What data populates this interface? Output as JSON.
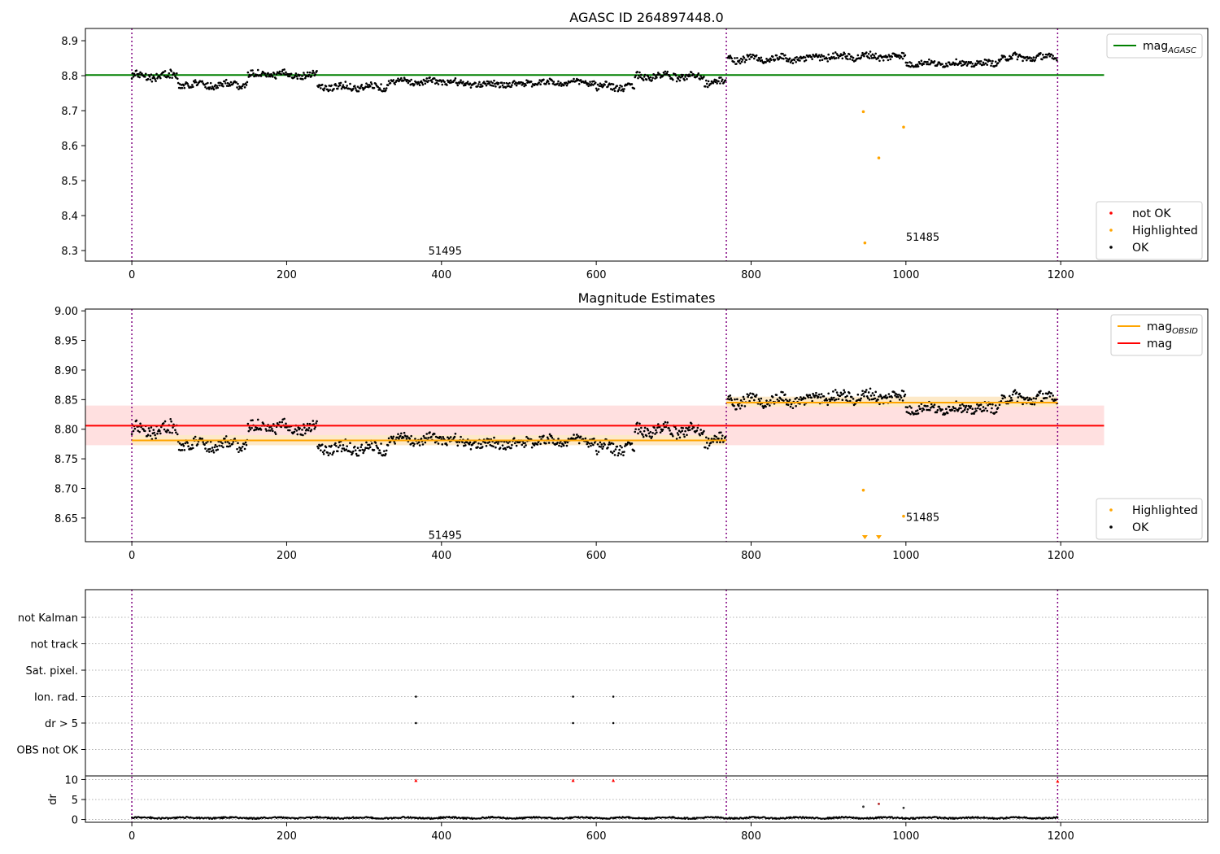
{
  "chart_data": [
    {
      "type": "scatter",
      "title": "AGASC ID 264897448.0",
      "xlim": [
        -60,
        1390
      ],
      "ylim": [
        8.27,
        8.935
      ],
      "xticks": [
        0,
        200,
        400,
        600,
        800,
        1000,
        1200
      ],
      "yticks": [
        8.3,
        8.4,
        8.5,
        8.6,
        8.7,
        8.8,
        8.9
      ],
      "vlines": [
        0,
        768,
        1196
      ],
      "hlines": [
        {
          "name_main": "mag",
          "name_sub": "AGASC",
          "y": 8.802,
          "x0": -60,
          "x1": 1256,
          "color": "#008000"
        }
      ],
      "segments": [
        {
          "x0": 0,
          "x1": 60,
          "level": 8.8,
          "amp": 0.012
        },
        {
          "x0": 60,
          "x1": 150,
          "level": 8.775,
          "amp": 0.01
        },
        {
          "x0": 150,
          "x1": 240,
          "level": 8.803,
          "amp": 0.01
        },
        {
          "x0": 240,
          "x1": 330,
          "level": 8.768,
          "amp": 0.01
        },
        {
          "x0": 330,
          "x1": 420,
          "level": 8.783,
          "amp": 0.008
        },
        {
          "x0": 420,
          "x1": 510,
          "level": 8.776,
          "amp": 0.008
        },
        {
          "x0": 510,
          "x1": 600,
          "level": 8.78,
          "amp": 0.008
        },
        {
          "x0": 600,
          "x1": 650,
          "level": 8.768,
          "amp": 0.01
        },
        {
          "x0": 650,
          "x1": 740,
          "level": 8.798,
          "amp": 0.01
        },
        {
          "x0": 740,
          "x1": 768,
          "level": 8.782,
          "amp": 0.01
        },
        {
          "x0": 770,
          "x1": 880,
          "level": 8.848,
          "amp": 0.01
        },
        {
          "x0": 880,
          "x1": 1000,
          "level": 8.855,
          "amp": 0.01
        },
        {
          "x0": 1000,
          "x1": 1120,
          "level": 8.835,
          "amp": 0.008
        },
        {
          "x0": 1120,
          "x1": 1196,
          "level": 8.852,
          "amp": 0.01
        }
      ],
      "highlighted": [
        {
          "x": 945,
          "y": 8.697
        },
        {
          "x": 997,
          "y": 8.653
        },
        {
          "x": 965,
          "y": 8.565
        },
        {
          "x": 947,
          "y": 8.322
        }
      ],
      "annotations": [
        {
          "text": "51495",
          "x": 383,
          "y": 8.3
        },
        {
          "text": "51485",
          "x": 1000,
          "y": 8.34
        }
      ],
      "legends": [
        {
          "placement": "top-right",
          "entries": [
            {
              "label_main": "mag",
              "label_sub": "AGASC",
              "kind": "line",
              "color": "#008000"
            }
          ]
        },
        {
          "placement": "bottom-right",
          "entries": [
            {
              "label": "not OK",
              "kind": "dot",
              "color": "#ff0000"
            },
            {
              "label": "Highlighted",
              "kind": "dot",
              "color": "#ffa500"
            },
            {
              "label": "OK",
              "kind": "dot",
              "color": "#000000"
            }
          ]
        }
      ]
    },
    {
      "type": "scatter",
      "title": "Magnitude Estimates",
      "xlim": [
        -60,
        1390
      ],
      "ylim": [
        8.61,
        9.003
      ],
      "xticks": [
        0,
        200,
        400,
        600,
        800,
        1000,
        1200
      ],
      "yticks": [
        8.65,
        8.7,
        8.75,
        8.8,
        8.85,
        8.9,
        8.95,
        9.0
      ],
      "vlines": [
        0,
        768,
        1196
      ],
      "bands": [
        {
          "x0": -60,
          "x1": 1256,
          "y0": 8.773,
          "y1": 8.84,
          "color": "#ffe0e0"
        },
        {
          "x0": 0,
          "x1": 768,
          "y0": 8.773,
          "y1": 8.79,
          "color": "#fde9c8"
        },
        {
          "x0": 768,
          "x1": 1196,
          "y0": 8.838,
          "y1": 8.855,
          "color": "#fde9c8"
        }
      ],
      "hlines": [
        {
          "y": 8.806,
          "x0": -60,
          "x1": 1256,
          "color": "#ff0000"
        },
        {
          "y": 8.781,
          "x0": 0,
          "x1": 768,
          "color": "#ffa500"
        },
        {
          "y": 8.845,
          "x0": 768,
          "x1": 1196,
          "color": "#ffa500"
        }
      ],
      "segments": [
        {
          "x0": 0,
          "x1": 60,
          "level": 8.8,
          "amp": 0.012
        },
        {
          "x0": 60,
          "x1": 150,
          "level": 8.775,
          "amp": 0.01
        },
        {
          "x0": 150,
          "x1": 240,
          "level": 8.803,
          "amp": 0.01
        },
        {
          "x0": 240,
          "x1": 330,
          "level": 8.768,
          "amp": 0.01
        },
        {
          "x0": 330,
          "x1": 420,
          "level": 8.783,
          "amp": 0.008
        },
        {
          "x0": 420,
          "x1": 510,
          "level": 8.776,
          "amp": 0.008
        },
        {
          "x0": 510,
          "x1": 600,
          "level": 8.78,
          "amp": 0.008
        },
        {
          "x0": 600,
          "x1": 650,
          "level": 8.768,
          "amp": 0.01
        },
        {
          "x0": 650,
          "x1": 740,
          "level": 8.798,
          "amp": 0.01
        },
        {
          "x0": 740,
          "x1": 768,
          "level": 8.782,
          "amp": 0.01
        },
        {
          "x0": 770,
          "x1": 880,
          "level": 8.848,
          "amp": 0.01
        },
        {
          "x0": 880,
          "x1": 1000,
          "level": 8.855,
          "amp": 0.01
        },
        {
          "x0": 1000,
          "x1": 1120,
          "level": 8.835,
          "amp": 0.008
        },
        {
          "x0": 1120,
          "x1": 1196,
          "level": 8.852,
          "amp": 0.01
        }
      ],
      "highlighted": [
        {
          "x": 945,
          "y": 8.697
        },
        {
          "x": 997,
          "y": 8.653
        }
      ],
      "off_bottom": [
        {
          "x": 947
        },
        {
          "x": 965
        }
      ],
      "annotations": [
        {
          "text": "51495",
          "x": 383,
          "y": 8.622
        },
        {
          "text": "51485",
          "x": 1000,
          "y": 8.652
        }
      ],
      "legends": [
        {
          "placement": "top-right",
          "entries": [
            {
              "label_main": "mag",
              "label_sub": "OBSID",
              "kind": "line",
              "color": "#ffa500"
            },
            {
              "label": "mag",
              "kind": "line",
              "color": "#ff0000"
            }
          ]
        },
        {
          "placement": "bottom-right",
          "entries": [
            {
              "label": "Highlighted",
              "kind": "dot",
              "color": "#ffa500"
            },
            {
              "label": "OK",
              "kind": "dot",
              "color": "#000000"
            }
          ]
        }
      ]
    },
    {
      "type": "scatter",
      "title": "",
      "xlim": [
        -60,
        1390
      ],
      "xticks": [
        0,
        200,
        400,
        600,
        800,
        1000,
        1200
      ],
      "vlines": [
        0,
        768,
        1196
      ],
      "flag_rows": [
        "not Kalman",
        "not track",
        "Sat. pixel.",
        "Ion. rad.",
        "dr > 5",
        "OBS not OK"
      ],
      "flag_points": [
        {
          "row": "Ion. rad.",
          "x": 367
        },
        {
          "row": "Ion. rad.",
          "x": 570
        },
        {
          "row": "Ion. rad.",
          "x": 622
        },
        {
          "row": "dr > 5",
          "x": 367
        },
        {
          "row": "dr > 5",
          "x": 570
        },
        {
          "row": "dr > 5",
          "x": 622
        }
      ],
      "dr": {
        "ylabel": "dr",
        "ylim": [
          -0.5,
          10.5
        ],
        "yticks": [
          0,
          5,
          10
        ],
        "baseline": 0.4,
        "not_ok": [
          {
            "x": 367,
            "y": 9.8
          },
          {
            "x": 570,
            "y": 9.8
          },
          {
            "x": 622,
            "y": 9.8
          },
          {
            "x": 1196,
            "y": 9.6
          }
        ],
        "highlighted": [
          {
            "x": 945,
            "y": 3.2
          },
          {
            "x": 965,
            "y": 3.9
          },
          {
            "x": 997,
            "y": 2.9
          }
        ]
      }
    }
  ]
}
